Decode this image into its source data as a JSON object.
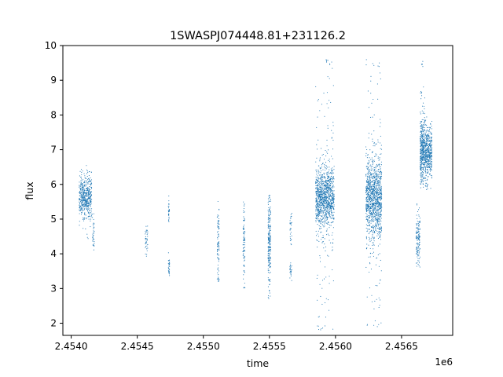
{
  "chart_data": {
    "type": "scatter",
    "title": "1SWASPJ074448.81+231126.2",
    "xlabel": "time",
    "ylabel": "flux",
    "x_offset_label": "1e6",
    "x_ticks": [
      2.454,
      2.4545,
      2.455,
      2.4555,
      2.456,
      2.4565
    ],
    "x_tick_labels": [
      "2.4540",
      "2.4545",
      "2.4550",
      "2.4555",
      "2.4560",
      "2.4565"
    ],
    "y_ticks": [
      2,
      3,
      4,
      5,
      6,
      7,
      8,
      9,
      10
    ],
    "y_tick_labels": [
      "2",
      "3",
      "4",
      "5",
      "6",
      "7",
      "8",
      "9",
      "10"
    ],
    "xlim": [
      2453937,
      2456887
    ],
    "ylim": [
      1.65,
      10.0
    ],
    "grid": false,
    "legend": "none",
    "point_color": "#1f77b4",
    "point_clusters": [
      {
        "x_from": 2454060,
        "x_to": 2454155,
        "y_center": 5.65,
        "spread": 0.3,
        "y_min": 4.4,
        "y_max": 6.9,
        "points": 520
      },
      {
        "x_from": 2454160,
        "x_to": 2454175,
        "y_center": 4.6,
        "spread": 0.25,
        "y_min": 3.9,
        "y_max": 5.2,
        "points": 35
      },
      {
        "x_from": 2454560,
        "x_to": 2454580,
        "y_center": 4.4,
        "spread": 0.2,
        "y_min": 3.9,
        "y_max": 4.8,
        "points": 40
      },
      {
        "x_from": 2454735,
        "x_to": 2454745,
        "y_center": 5.2,
        "spread": 0.22,
        "y_min": 4.8,
        "y_max": 5.8,
        "points": 30
      },
      {
        "x_from": 2454735,
        "x_to": 2454745,
        "y_center": 3.6,
        "spread": 0.2,
        "y_min": 3.1,
        "y_max": 4.1,
        "points": 30
      },
      {
        "x_from": 2455105,
        "x_to": 2455120,
        "y_center": 4.4,
        "spread": 0.65,
        "y_min": 3.2,
        "y_max": 5.7,
        "points": 90
      },
      {
        "x_from": 2455300,
        "x_to": 2455315,
        "y_center": 4.3,
        "spread": 0.65,
        "y_min": 3.0,
        "y_max": 5.5,
        "points": 90
      },
      {
        "x_from": 2455490,
        "x_to": 2455510,
        "y_center": 4.3,
        "spread": 0.65,
        "y_min": 2.6,
        "y_max": 5.7,
        "points": 220
      },
      {
        "x_from": 2455655,
        "x_to": 2455670,
        "y_center": 4.7,
        "spread": 0.3,
        "y_min": 4.2,
        "y_max": 5.2,
        "points": 30
      },
      {
        "x_from": 2455655,
        "x_to": 2455670,
        "y_center": 3.5,
        "spread": 0.15,
        "y_min": 3.2,
        "y_max": 3.8,
        "points": 25
      },
      {
        "x_from": 2455850,
        "x_to": 2455990,
        "y_center": 5.6,
        "spread": 0.45,
        "y_min": 4.3,
        "y_max": 7.2,
        "points": 1000
      },
      {
        "x_from": 2455850,
        "x_to": 2455990,
        "y_center": 5.6,
        "spread": 2.1,
        "y_min": 1.8,
        "y_max": 9.6,
        "points": 170
      },
      {
        "x_from": 2456230,
        "x_to": 2456350,
        "y_center": 5.6,
        "spread": 0.55,
        "y_min": 4.0,
        "y_max": 7.6,
        "points": 1000
      },
      {
        "x_from": 2456230,
        "x_to": 2456350,
        "y_center": 5.6,
        "spread": 2.1,
        "y_min": 1.9,
        "y_max": 9.6,
        "points": 170
      },
      {
        "x_from": 2456610,
        "x_to": 2456640,
        "y_center": 4.4,
        "spread": 0.45,
        "y_min": 3.6,
        "y_max": 5.5,
        "points": 140
      },
      {
        "x_from": 2456640,
        "x_to": 2456730,
        "y_center": 6.9,
        "spread": 0.4,
        "y_min": 5.8,
        "y_max": 8.6,
        "points": 750
      },
      {
        "x_from": 2456640,
        "x_to": 2456680,
        "y_center": 7.5,
        "spread": 1.1,
        "y_min": 6.0,
        "y_max": 9.6,
        "points": 90
      }
    ]
  }
}
